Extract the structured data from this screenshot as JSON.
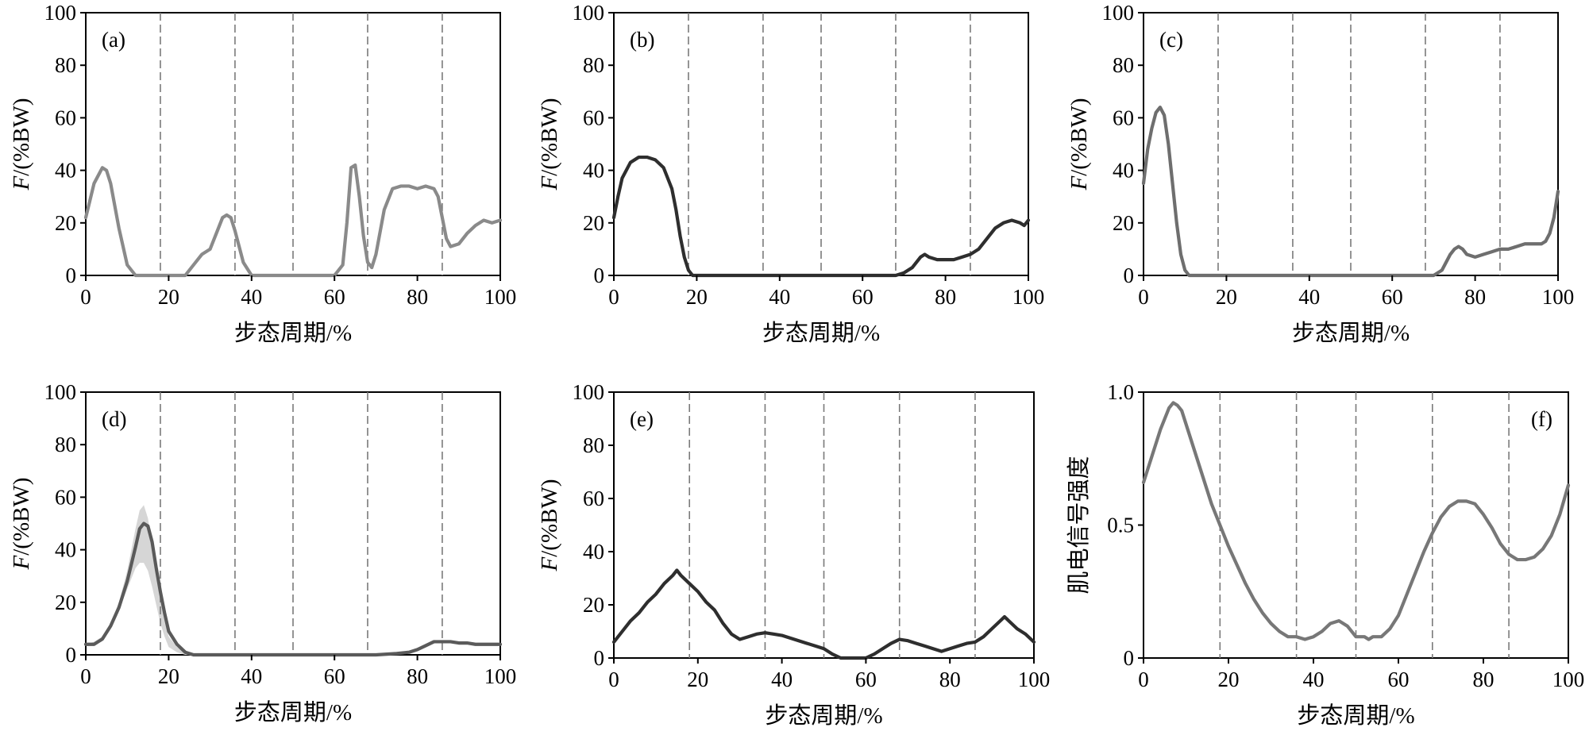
{
  "chart_data": [
    {
      "type": "line",
      "panel_label": "(a)",
      "xlabel": "步态周期/%",
      "ylabel": "F/(%BW)",
      "ylabel_italic_prefix": "F",
      "ylabel_rest": "/(%BW)",
      "xlim": [
        0,
        100
      ],
      "ylim": [
        0,
        100
      ],
      "xticks": [
        0,
        20,
        40,
        60,
        80,
        100
      ],
      "yticks": [
        0,
        20,
        40,
        60,
        80,
        100
      ],
      "ytick_labels": [
        "0",
        "20",
        "40",
        "60",
        "80",
        "100"
      ],
      "vlines": [
        18,
        36,
        50,
        68,
        86
      ],
      "grid": false,
      "series": [
        {
          "color": "#8a8a8a",
          "x": [
            0,
            2,
            4,
            5,
            6,
            8,
            10,
            12,
            18,
            24,
            26,
            28,
            30,
            32,
            33,
            34,
            35,
            36,
            38,
            40,
            45,
            55,
            60,
            62,
            63,
            64,
            65,
            66,
            67,
            68,
            69,
            70,
            72,
            74,
            76,
            78,
            80,
            82,
            84,
            85,
            86,
            87,
            88,
            90,
            92,
            94,
            96,
            98,
            100
          ],
          "y": [
            22,
            35,
            41,
            40,
            35,
            18,
            4,
            0,
            0,
            0,
            4,
            8,
            10,
            18,
            22,
            23,
            22,
            17,
            5,
            0,
            0,
            0,
            0,
            4,
            20,
            41,
            42,
            30,
            15,
            5,
            3,
            8,
            25,
            33,
            34,
            34,
            33,
            34,
            33,
            30,
            22,
            14,
            11,
            12,
            16,
            19,
            21,
            20,
            21
          ]
        }
      ]
    },
    {
      "type": "line",
      "panel_label": "(b)",
      "xlabel": "步态周期/%",
      "ylabel": "F/(%BW)",
      "ylabel_italic_prefix": "F",
      "ylabel_rest": "/(%BW)",
      "xlim": [
        0,
        100
      ],
      "ylim": [
        0,
        100
      ],
      "xticks": [
        0,
        20,
        40,
        60,
        80,
        100
      ],
      "yticks": [
        0,
        20,
        40,
        60,
        80,
        100
      ],
      "ytick_labels": [
        "0",
        "20",
        "40",
        "60",
        "80",
        "100"
      ],
      "vlines": [
        18,
        36,
        50,
        68,
        86
      ],
      "grid": false,
      "series": [
        {
          "color": "#2e2e2e",
          "x": [
            0,
            1,
            2,
            4,
            6,
            8,
            10,
            12,
            14,
            15,
            16,
            17,
            18,
            19,
            20,
            30,
            40,
            50,
            60,
            68,
            70,
            72,
            74,
            75,
            76,
            78,
            80,
            82,
            84,
            86,
            88,
            90,
            92,
            94,
            96,
            98,
            99,
            100
          ],
          "y": [
            22,
            30,
            37,
            43,
            45,
            45,
            44,
            41,
            33,
            25,
            15,
            7,
            2,
            0,
            0,
            0,
            0,
            0,
            0,
            0,
            1,
            3,
            7,
            8,
            7,
            6,
            6,
            6,
            7,
            8,
            10,
            14,
            18,
            20,
            21,
            20,
            19,
            21
          ]
        }
      ]
    },
    {
      "type": "line",
      "panel_label": "(c)",
      "xlabel": "步态周期/%",
      "ylabel": "F/(%BW)",
      "ylabel_italic_prefix": "F",
      "ylabel_rest": "/(%BW)",
      "xlim": [
        0,
        100
      ],
      "ylim": [
        0,
        100
      ],
      "xticks": [
        0,
        20,
        40,
        60,
        80,
        100
      ],
      "yticks": [
        0,
        20,
        40,
        60,
        80,
        100
      ],
      "ytick_labels": [
        "0",
        "20",
        "40",
        "60",
        "80",
        "100"
      ],
      "vlines": [
        18,
        36,
        50,
        68,
        86
      ],
      "grid": false,
      "series": [
        {
          "color": "#6e6e6e",
          "x": [
            0,
            1,
            2,
            3,
            4,
            5,
            6,
            7,
            8,
            9,
            10,
            11,
            12,
            20,
            40,
            60,
            68,
            70,
            72,
            74,
            75,
            76,
            77,
            78,
            80,
            82,
            84,
            86,
            88,
            90,
            92,
            94,
            96,
            97,
            98,
            99,
            100
          ],
          "y": [
            35,
            48,
            56,
            62,
            64,
            61,
            50,
            35,
            20,
            8,
            2,
            0,
            0,
            0,
            0,
            0,
            0,
            0,
            2,
            8,
            10,
            11,
            10,
            8,
            7,
            8,
            9,
            10,
            10,
            11,
            12,
            12,
            12,
            13,
            16,
            22,
            32
          ]
        }
      ]
    },
    {
      "type": "line",
      "panel_label": "(d)",
      "xlabel": "步态周期/%",
      "ylabel": "F/(%BW)",
      "ylabel_italic_prefix": "F",
      "ylabel_rest": "/(%BW)",
      "xlim": [
        0,
        100
      ],
      "ylim": [
        0,
        100
      ],
      "xticks": [
        0,
        20,
        40,
        60,
        80,
        100
      ],
      "yticks": [
        0,
        20,
        40,
        60,
        80,
        100
      ],
      "ytick_labels": [
        "0",
        "20",
        "40",
        "60",
        "80",
        "100"
      ],
      "vlines": [
        18,
        36,
        50,
        68,
        86
      ],
      "grid": false,
      "band": {
        "color": "#d6d6d6",
        "x": [
          0,
          2,
          4,
          6,
          8,
          10,
          12,
          13,
          14,
          15,
          16,
          17,
          18,
          19,
          20,
          22,
          24,
          26,
          30
        ],
        "lower": [
          4,
          4,
          6,
          10,
          17,
          25,
          33,
          35,
          35,
          32,
          26,
          19,
          12,
          7,
          3,
          1,
          0,
          0,
          0
        ],
        "upper": [
          4,
          5,
          7,
          12,
          20,
          32,
          48,
          55,
          57,
          52,
          42,
          31,
          22,
          14,
          7,
          3,
          1,
          0,
          0
        ]
      },
      "series": [
        {
          "color": "#5a5a5a",
          "x": [
            0,
            2,
            4,
            6,
            8,
            10,
            12,
            13,
            14,
            15,
            16,
            17,
            18,
            19,
            20,
            22,
            24,
            26,
            30,
            40,
            50,
            60,
            70,
            75,
            78,
            80,
            82,
            84,
            86,
            88,
            90,
            92,
            94,
            96,
            98,
            100
          ],
          "y": [
            4,
            4,
            6,
            11,
            18,
            28,
            41,
            48,
            50,
            49,
            43,
            33,
            24,
            16,
            9,
            4,
            1,
            0,
            0,
            0,
            0,
            0,
            0,
            0.5,
            1,
            2,
            3.5,
            5,
            5,
            5,
            4.5,
            4.5,
            4,
            4,
            4,
            4
          ]
        }
      ]
    },
    {
      "type": "line",
      "panel_label": "(e)",
      "xlabel": "步态周期/%",
      "ylabel": "F/(%BW)",
      "ylabel_italic_prefix": "F",
      "ylabel_rest": "/(%BW)",
      "xlim": [
        0,
        100
      ],
      "ylim": [
        0,
        100
      ],
      "xticks": [
        0,
        20,
        40,
        60,
        80,
        100
      ],
      "yticks": [
        0,
        20,
        40,
        60,
        80,
        100
      ],
      "ytick_labels": [
        "0",
        "20",
        "40",
        "60",
        "80",
        "100"
      ],
      "vlines": [
        18,
        36,
        50,
        68,
        86
      ],
      "grid": false,
      "series": [
        {
          "color": "#2e2e2e",
          "x": [
            0,
            2,
            4,
            6,
            8,
            10,
            12,
            14,
            15,
            16,
            18,
            20,
            22,
            24,
            26,
            28,
            30,
            32,
            34,
            36,
            38,
            40,
            42,
            44,
            46,
            48,
            50,
            52,
            54,
            56,
            58,
            60,
            62,
            64,
            66,
            68,
            70,
            72,
            74,
            76,
            78,
            80,
            82,
            84,
            86,
            88,
            90,
            92,
            93,
            94,
            96,
            98,
            100
          ],
          "y": [
            6,
            10,
            14,
            17,
            21,
            24,
            28,
            31,
            33,
            31,
            28,
            25,
            21,
            18,
            13,
            9,
            7,
            8,
            9,
            9.5,
            9,
            8.5,
            7.5,
            6.5,
            5.5,
            4.5,
            3.5,
            1.5,
            0,
            0,
            0,
            0,
            1.5,
            3.5,
            5.5,
            7,
            6.5,
            5.5,
            4.5,
            3.5,
            2.5,
            3.5,
            4.5,
            5.5,
            6,
            8,
            11,
            14,
            15.5,
            14,
            11,
            9,
            6
          ]
        }
      ]
    },
    {
      "type": "line",
      "panel_label": "(f)",
      "xlabel": "步态周期/%",
      "ylabel": "肌电信号强度",
      "ylabel_italic_prefix": "",
      "ylabel_rest": "肌电信号强度",
      "xlim": [
        0,
        100
      ],
      "ylim": [
        0,
        1.0
      ],
      "xticks": [
        0,
        20,
        40,
        60,
        80,
        100
      ],
      "yticks": [
        0,
        0.5,
        1.0
      ],
      "ytick_labels": [
        "0",
        "0.5",
        "1.0"
      ],
      "vlines": [
        18,
        36,
        50,
        68,
        86
      ],
      "grid": false,
      "series": [
        {
          "color": "#777777",
          "x": [
            0,
            2,
            4,
            6,
            7,
            8,
            9,
            10,
            12,
            14,
            16,
            18,
            20,
            22,
            24,
            26,
            28,
            30,
            32,
            34,
            36,
            38,
            40,
            42,
            44,
            46,
            48,
            50,
            52,
            53,
            54,
            56,
            58,
            60,
            62,
            64,
            66,
            68,
            70,
            72,
            74,
            76,
            78,
            80,
            82,
            84,
            86,
            88,
            90,
            92,
            94,
            96,
            98,
            100
          ],
          "y": [
            0.66,
            0.76,
            0.86,
            0.94,
            0.96,
            0.95,
            0.93,
            0.88,
            0.78,
            0.68,
            0.58,
            0.5,
            0.42,
            0.35,
            0.28,
            0.22,
            0.17,
            0.13,
            0.1,
            0.08,
            0.08,
            0.07,
            0.08,
            0.1,
            0.13,
            0.14,
            0.12,
            0.08,
            0.08,
            0.07,
            0.08,
            0.08,
            0.11,
            0.16,
            0.24,
            0.32,
            0.4,
            0.47,
            0.53,
            0.57,
            0.59,
            0.59,
            0.58,
            0.54,
            0.49,
            0.43,
            0.39,
            0.37,
            0.37,
            0.38,
            0.41,
            0.46,
            0.54,
            0.65
          ]
        }
      ]
    }
  ]
}
